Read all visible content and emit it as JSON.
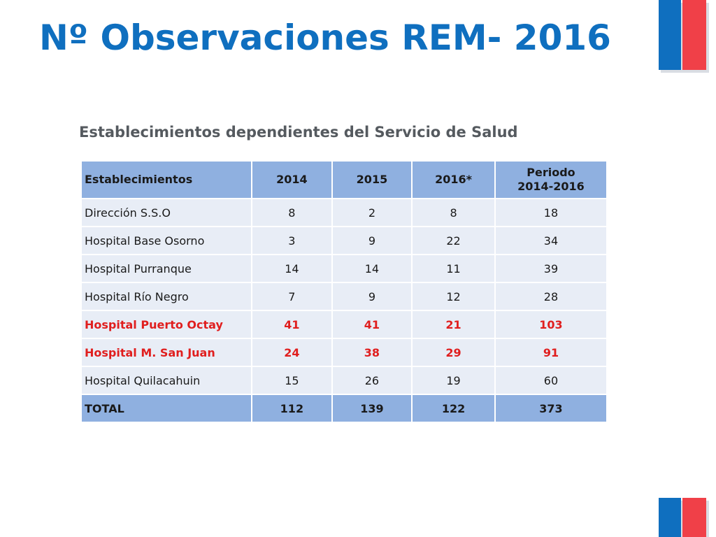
{
  "title": "Nº Observaciones REM- 2016",
  "subtitle": "Establecimientos dependientes del Servicio de Salud",
  "colors": {
    "title": "#0f6fbf",
    "flag_blue": "#0f6fbf",
    "flag_red": "#f04048",
    "header_bg": "#8fb0e0",
    "row_bg": "#e8edf6",
    "highlight_text": "#e01e1e"
  },
  "table": {
    "headers": {
      "name": "Establecimientos",
      "y2014": "2014",
      "y2015": "2015",
      "y2016": "2016*",
      "periodo_line1": "Periodo",
      "periodo_line2": "2014-2016"
    },
    "rows": [
      {
        "name": "Dirección S.S.O",
        "y2014": "8",
        "y2015": "2",
        "y2016": "8",
        "periodo": "18"
      },
      {
        "name": "Hospital Base Osorno",
        "y2014": "3",
        "y2015": "9",
        "y2016": "22",
        "periodo": "34"
      },
      {
        "name": "Hospital Purranque",
        "y2014": "14",
        "y2015": "14",
        "y2016": "11",
        "periodo": "39"
      },
      {
        "name": "Hospital Río Negro",
        "y2014": "7",
        "y2015": "9",
        "y2016": "12",
        "periodo": "28"
      },
      {
        "name": "Hospital Puerto Octay",
        "y2014": "41",
        "y2015": "41",
        "y2016": "21",
        "periodo": "103"
      },
      {
        "name": "Hospital M. San Juan",
        "y2014": "24",
        "y2015": "38",
        "y2016": "29",
        "periodo": "91"
      },
      {
        "name": "Hospital Quilacahuin",
        "y2014": "15",
        "y2015": "26",
        "y2016": "19",
        "periodo": "60"
      }
    ],
    "total": {
      "name": "TOTAL",
      "y2014": "112",
      "y2015": "139",
      "y2016": "122",
      "periodo": "373"
    }
  }
}
